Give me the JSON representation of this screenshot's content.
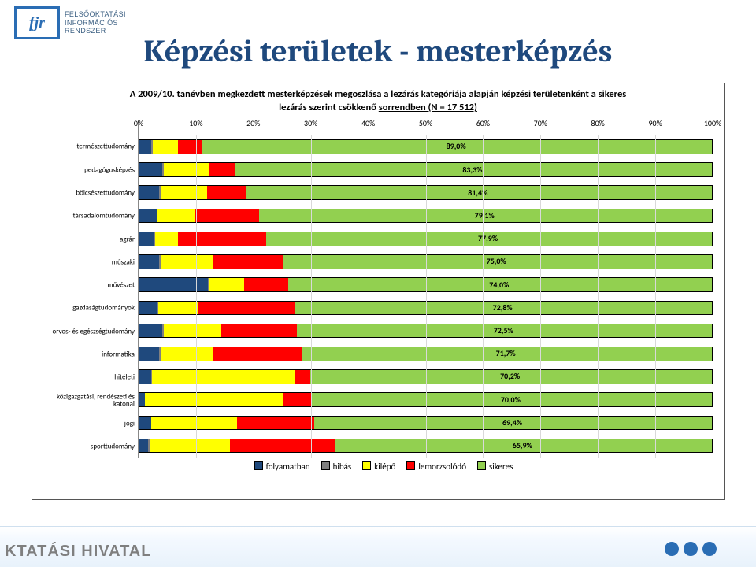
{
  "logo": {
    "abbr": "fjr",
    "sub": "FELSŐOKTATÁSI\nINFORMÁCIÓS\nRENDSZER"
  },
  "title": "Képzési területek - mesterképzés",
  "footer_brand": "KTATÁSI HIVATAL",
  "chart": {
    "type": "stacked-bar-horizontal",
    "title_prefix": "A 2009/10. tanévben megkezdett mesterképzések megoszlása a lezárás kategóriája alapján képzési területenként a ",
    "title_ul1": "sikeres",
    "title_mid": " lezárás szerint csökkenő ",
    "title_ul2": "sorrendben (N = 17 512)",
    "xlim": [
      0,
      100
    ],
    "xtick_step": 10,
    "xtick_suffix": "%",
    "background": "#ffffff",
    "grid_color": "#d9d9d9",
    "bar_border": "#000000",
    "label_fontsize": 9,
    "tick_fontsize": 10,
    "value_fontsize": 10,
    "categories": [
      "természettudomány",
      "pedagógusképzés",
      "bölcsészettudomány",
      "társadalomtudomány",
      "agrár",
      "műszaki",
      "művészet",
      "gazdaságtudományok",
      "orvos- és egészségtudomány",
      "informatika",
      "hitéleti",
      "közigazgatási, rendészeti és katonai",
      "jogi",
      "sporttudomány"
    ],
    "value_labels": [
      "89,0%",
      "83,3%",
      "81,4%",
      "79,1%",
      "77,9%",
      "75,0%",
      "74,0%",
      "72,8%",
      "72,5%",
      "71,7%",
      "70,2%",
      "70,0%",
      "69,4%",
      "65,9%"
    ],
    "series": [
      {
        "name": "folyamatban",
        "color": "#1f497d",
        "values": [
          2.0,
          4.0,
          3.5,
          3.0,
          2.5,
          3.5,
          12.0,
          3.0,
          4.0,
          3.5,
          2.0,
          1.0,
          2.0,
          1.5
        ]
      },
      {
        "name": "hibás",
        "color": "#808080",
        "values": [
          0.3,
          0.3,
          0.3,
          0.2,
          0.2,
          0.3,
          0.3,
          0.3,
          0.3,
          0.3,
          0.2,
          0.0,
          0.0,
          0.3
        ]
      },
      {
        "name": "kilépő",
        "color": "#ffff00",
        "values": [
          4.5,
          8.0,
          8.0,
          6.5,
          4.0,
          9.0,
          6.0,
          7.0,
          10.0,
          9.0,
          25.0,
          24.0,
          15.0,
          14.0
        ]
      },
      {
        "name": "lemorzsolódó",
        "color": "#ff0000",
        "values": [
          4.2,
          4.4,
          6.8,
          11.2,
          15.4,
          12.2,
          7.7,
          16.9,
          13.2,
          15.5,
          2.6,
          5.0,
          13.6,
          18.3
        ]
      },
      {
        "name": "sikeres",
        "color": "#92d050",
        "values": [
          89.0,
          83.3,
          81.4,
          79.1,
          77.9,
          75.0,
          74.0,
          72.8,
          72.5,
          71.7,
          70.2,
          70.0,
          69.4,
          65.9
        ]
      }
    ]
  }
}
